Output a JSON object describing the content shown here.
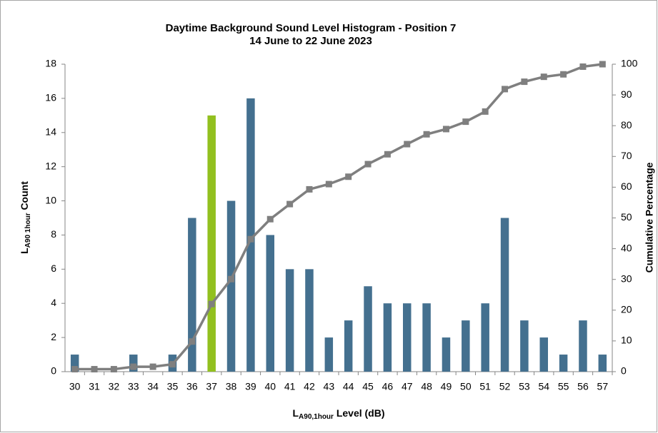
{
  "chart_data": {
    "type": "bar",
    "title": "Daytime Background Sound Level Histogram - Position 7",
    "subtitle": "14 June to 22 June 2023",
    "x_label": [
      "L",
      "A90,1hour",
      " Level (dB)"
    ],
    "y_label": [
      "L",
      "A90 1hour",
      " Count"
    ],
    "y2_label": "Cumulative Percentage",
    "categories": [
      "30",
      "31",
      "32",
      "33",
      "34",
      "35",
      "36",
      "37",
      "38",
      "39",
      "40",
      "41",
      "42",
      "43",
      "44",
      "45",
      "46",
      "47",
      "48",
      "49",
      "50",
      "51",
      "52",
      "53",
      "54",
      "55",
      "56",
      "57"
    ],
    "series": [
      {
        "type": "bar",
        "color": "#44708f",
        "colors": [
          "#44708f",
          "#44708f",
          "#44708f",
          "#44708f",
          "#44708f",
          "#44708f",
          "#44708f",
          "#92c01f",
          "#44708f",
          "#44708f",
          "#44708f",
          "#44708f",
          "#44708f",
          "#44708f",
          "#44708f",
          "#44708f",
          "#44708f",
          "#44708f",
          "#44708f",
          "#44708f",
          "#44708f",
          "#44708f",
          "#44708f",
          "#44708f",
          "#44708f",
          "#44708f",
          "#44708f",
          "#44708f"
        ],
        "values": [
          1,
          0,
          0,
          1,
          0,
          1,
          9,
          15,
          10,
          16,
          8,
          6,
          6,
          2,
          3,
          5,
          4,
          4,
          4,
          2,
          3,
          4,
          9,
          3,
          2,
          1,
          3,
          1
        ]
      },
      {
        "type": "line",
        "axis": "y2",
        "color": "#7f7f7f",
        "values": [
          0.8,
          0.8,
          0.8,
          1.6,
          1.6,
          2.4,
          9.8,
          22.0,
          30.1,
          43.1,
          49.6,
          54.5,
          59.3,
          61.0,
          63.4,
          67.5,
          70.7,
          74.0,
          77.2,
          78.9,
          81.3,
          84.6,
          91.9,
          94.3,
          95.9,
          96.7,
          99.2,
          100
        ]
      }
    ],
    "ylim": [
      0,
      18
    ],
    "yticks": [
      0,
      2,
      4,
      6,
      8,
      10,
      12,
      14,
      16,
      18
    ],
    "y2lim": [
      0,
      100
    ],
    "y2ticks": [
      0,
      10,
      20,
      30,
      40,
      50,
      60,
      70,
      80,
      90,
      100
    ],
    "grid": false
  }
}
